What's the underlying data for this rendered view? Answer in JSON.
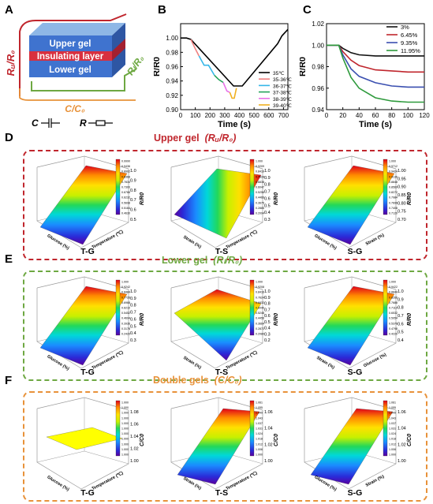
{
  "panel_labels": {
    "a": "A",
    "b": "B",
    "c": "C",
    "d": "D",
    "e": "E",
    "f": "F"
  },
  "schematic": {
    "layers": [
      "Upper gel",
      "Insulating layer",
      "Lower gel"
    ],
    "ru_label": "Rᵤ/R₀",
    "rl_label": "Rₗ/R₀",
    "cc_label": "C/C₀",
    "c_symbol": "C",
    "r_symbol": "R"
  },
  "sections": {
    "upper": {
      "title_text": "Upper gel",
      "title_math": "(Rᵤ/R₀)",
      "color": "#c0262d"
    },
    "lower": {
      "title_text": "Lower gel",
      "title_math": "(Rₗ/R₀)",
      "color": "#6ea842"
    },
    "double": {
      "title_text": "Double gels",
      "title_math": "(C/C₀)",
      "color": "#e8923a"
    }
  },
  "surfaces": {
    "upper": [
      {
        "label": "T-G",
        "zlabel": "R/R0",
        "zticks": [
          "1.0",
          "0.9",
          "0.8",
          "0.7",
          "0.6",
          "0.5"
        ],
        "cbar": [
          "0.9990",
          "0.9436",
          "0.8902",
          "0.8368",
          "0.7834",
          "0.7300",
          "0.6766",
          "0.6232",
          "0.5698",
          "0.5164",
          "0.4630"
        ],
        "x": "Temperature (℃)",
        "y": "Glucose (%)",
        "flat": false
      },
      {
        "label": "T-S",
        "zlabel": "R/R0",
        "zticks": [
          "1.0",
          "0.9",
          "0.8",
          "0.7",
          "0.6",
          "0.5",
          "0.4",
          "0.3"
        ],
        "cbar": [
          "1.000",
          "0.9209",
          "0.8419",
          "0.7628",
          "0.6838",
          "0.6047",
          "0.5256",
          "0.4466",
          "0.3675",
          "0.2885",
          "0.2094"
        ],
        "x": "Temperature (℃)",
        "y": "Strain (%)",
        "flat": false
      },
      {
        "label": "S-G",
        "zlabel": "R/R0",
        "zticks": [
          "1.00",
          "0.95",
          "0.90",
          "0.85",
          "0.80",
          "0.75",
          "0.70"
        ],
        "cbar": [
          "1.000",
          "0.9712",
          "0.9424",
          "0.9136",
          "0.8848",
          "0.8560",
          "0.8272",
          "0.7984",
          "0.7696",
          "0.7408",
          "0.7120"
        ],
        "x": "Strain (%)",
        "y": "Glucose (%)",
        "flat": false
      }
    ],
    "lower": [
      {
        "label": "T-G",
        "zlabel": "R/R0",
        "zticks": [
          "1.0",
          "0.9",
          "0.8",
          "0.7",
          "0.6",
          "0.5",
          "0.4",
          "0.3"
        ],
        "cbar": [
          "1.000",
          "0.9242",
          "0.8484",
          "0.7726",
          "0.6968",
          "0.6210",
          "0.5452",
          "0.4694",
          "0.3936",
          "0.3178",
          "0.2420"
        ],
        "x": "Temperature (℃)",
        "y": "Glucose (%)",
        "flat": false
      },
      {
        "label": "T-S",
        "zlabel": "R/R0",
        "zticks": [
          "1.0",
          "0.9",
          "0.8",
          "0.7",
          "0.6",
          "0.5",
          "0.4",
          "0.3",
          "0.2"
        ],
        "cbar": [
          "1.000",
          "0.9208",
          "0.8416",
          "0.7624",
          "0.6832",
          "0.6040",
          "0.5248",
          "0.4456",
          "0.3664",
          "0.2872",
          "0.2080"
        ],
        "x": "Temperature (℃)",
        "y": "Strain (%)",
        "flat": false
      },
      {
        "label": "S-G",
        "zlabel": "R/R0",
        "zticks": [
          "1.0",
          "0.9",
          "0.8",
          "0.7",
          "0.6",
          "0.5",
          "0.4"
        ],
        "cbar": [
          "1.000",
          "0.9422",
          "0.8844",
          "0.8266",
          "0.7688",
          "0.7110",
          "0.6532",
          "0.5954",
          "0.5376",
          "0.4798",
          "0.4220"
        ],
        "x": "Glucose (%)",
        "y": "Strain (%)",
        "flat": false
      }
    ],
    "double": [
      {
        "label": "T-G",
        "zlabel": "C/C0",
        "zticks": [
          "1.08",
          "1.06",
          "1.04",
          "1.02",
          "1.00"
        ],
        "cbar": [
          "1.000",
          "1.000",
          "1.000",
          "1.000",
          "1.000",
          "1.000",
          "1.000",
          "1.000",
          "1.000",
          "1.000",
          "1.000"
        ],
        "x": "Temperature (℃)",
        "y": "Glucose (%)",
        "flat": true
      },
      {
        "label": "T-S",
        "zlabel": "C/C0",
        "zticks": [
          "1.06",
          "1.04",
          "1.02",
          "1.00"
        ],
        "cbar": [
          "1.061",
          "1.055",
          "1.049",
          "1.043",
          "1.037",
          "1.031",
          "1.024",
          "1.018",
          "1.012",
          "1.006",
          "1.000"
        ],
        "x": "Temperature (℃)",
        "y": "Strain (%)",
        "flat": false
      },
      {
        "label": "S-G",
        "zlabel": "C/C0",
        "zticks": [
          "1.06",
          "1.04",
          "1.02",
          "1.00"
        ],
        "cbar": [
          "1.061",
          "1.055",
          "1.049",
          "1.043",
          "1.037",
          "1.031",
          "1.024",
          "1.018",
          "1.012",
          "1.006",
          "1.000"
        ],
        "x": "Strain (%)",
        "y": "Glucose (%)",
        "flat": false
      }
    ]
  },
  "chart_data": [
    {
      "type": "line",
      "panel": "B",
      "xlabel": "Time (s)",
      "ylabel": "R/R0",
      "xlim": [
        0,
        730
      ],
      "ylim": [
        0.9,
        1.02
      ],
      "xticks": [
        "0",
        "100",
        "200",
        "300",
        "400",
        "500",
        "600",
        "700"
      ],
      "yticks": [
        "1.00",
        "0.98",
        "0.96",
        "0.94",
        "0.92",
        "0.90"
      ],
      "legend_position": "bottom-right",
      "series": [
        {
          "name": "35℃",
          "color": "#000000",
          "x": [
            0,
            40,
            70,
            360,
            420,
            660,
            690,
            730
          ],
          "y": [
            1.0,
            1.0,
            0.998,
            0.933,
            0.933,
            0.992,
            1.003,
            1.012
          ]
        },
        {
          "name": "35-36℃",
          "color": "#f08080",
          "x": [
            70,
            100,
            125
          ],
          "y": [
            0.998,
            0.985,
            0.975
          ]
        },
        {
          "name": "36-37℃",
          "color": "#35b7e8",
          "x": [
            125,
            160,
            190,
            230
          ],
          "y": [
            0.975,
            0.962,
            0.962,
            0.948
          ]
        },
        {
          "name": "37-38℃",
          "color": "#25a35a",
          "x": [
            230,
            260,
            290
          ],
          "y": [
            0.948,
            0.942,
            0.938
          ]
        },
        {
          "name": "38-39℃",
          "color": "#e872e8",
          "x": [
            290,
            315,
            335
          ],
          "y": [
            0.938,
            0.926,
            0.924
          ]
        },
        {
          "name": "39-40℃",
          "color": "#f0b020",
          "x": [
            335,
            350,
            365,
            380
          ],
          "y": [
            0.924,
            0.916,
            0.916,
            0.93
          ]
        }
      ]
    },
    {
      "type": "line",
      "panel": "C",
      "xlabel": "Time (s)",
      "ylabel": "R/R0",
      "xlim": [
        0,
        120
      ],
      "ylim": [
        0.94,
        1.02
      ],
      "xticks": [
        "0",
        "20",
        "40",
        "60",
        "80",
        "100",
        "120"
      ],
      "yticks": [
        "1.02",
        "1.00",
        "0.98",
        "0.96",
        "0.94"
      ],
      "legend_position": "top-right",
      "series": [
        {
          "name": "3%",
          "color": "#111111",
          "x": [
            0,
            15,
            20,
            30,
            40,
            60,
            80,
            100,
            120
          ],
          "y": [
            1.0,
            1.0,
            0.997,
            0.993,
            0.991,
            0.99,
            0.99,
            0.99,
            0.99
          ]
        },
        {
          "name": "6.45%",
          "color": "#c0262d",
          "x": [
            0,
            15,
            20,
            30,
            40,
            60,
            80,
            100,
            120
          ],
          "y": [
            1.0,
            1.0,
            0.994,
            0.986,
            0.981,
            0.977,
            0.976,
            0.975,
            0.975
          ]
        },
        {
          "name": "9.35%",
          "color": "#3a4fb0",
          "x": [
            0,
            15,
            20,
            30,
            40,
            60,
            80,
            100,
            120
          ],
          "y": [
            1.0,
            1.0,
            0.991,
            0.978,
            0.971,
            0.965,
            0.962,
            0.961,
            0.961
          ]
        },
        {
          "name": "11.95%",
          "color": "#2e9a3c",
          "x": [
            0,
            15,
            20,
            30,
            40,
            60,
            80,
            100,
            120
          ],
          "y": [
            1.0,
            1.0,
            0.988,
            0.97,
            0.96,
            0.951,
            0.948,
            0.947,
            0.947
          ]
        }
      ]
    }
  ]
}
